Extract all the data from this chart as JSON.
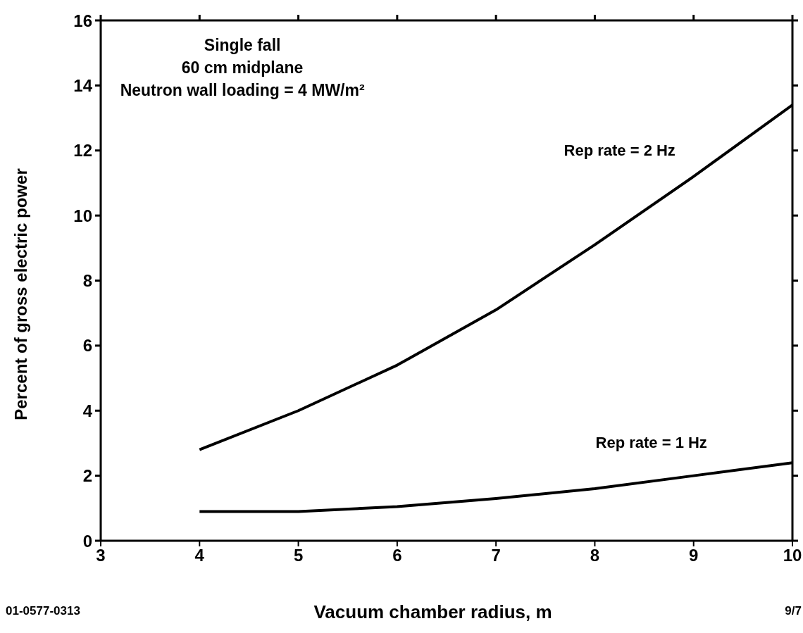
{
  "chart_data": {
    "type": "line",
    "xlabel": "Vacuum chamber radius, m",
    "ylabel": "Percent of gross electric power",
    "x": [
      4,
      5,
      6,
      7,
      8,
      9,
      10
    ],
    "series": [
      {
        "name": "Rep rate = 2 Hz",
        "color": "#000000",
        "values": [
          2.8,
          4.0,
          5.4,
          7.1,
          9.1,
          11.2,
          13.4
        ]
      },
      {
        "name": "Rep rate = 1 Hz",
        "color": "#000000",
        "values": [
          0.9,
          0.9,
          1.05,
          1.3,
          1.6,
          2.0,
          2.4
        ]
      }
    ],
    "xlim": [
      3,
      10
    ],
    "xticks": [
      3,
      4,
      5,
      6,
      7,
      8,
      9,
      10
    ],
    "ylim": [
      0,
      16
    ],
    "yticks": [
      0,
      2,
      4,
      6,
      8,
      10,
      12,
      14,
      16
    ],
    "grid": false,
    "legend": false,
    "marker": "none",
    "line_style": "solid",
    "annotations": [
      "Single fall",
      "60 cm midplane",
      "Neutron wall loading = 4 MW/m²",
      "01-0577-0313",
      "9/7"
    ]
  }
}
